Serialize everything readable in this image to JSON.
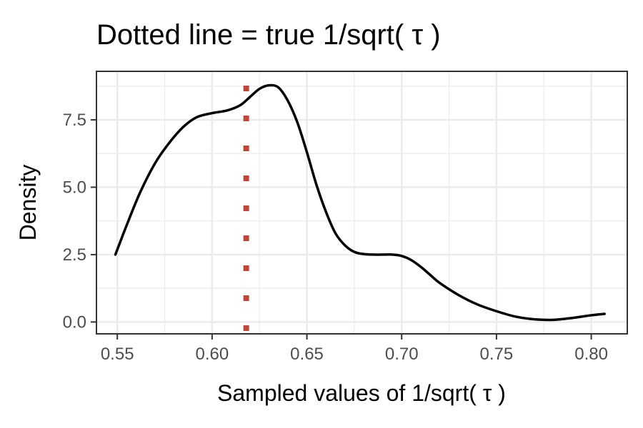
{
  "chart_data": {
    "type": "line",
    "title": "Dotted line = true 1/sqrt( τ )",
    "xlabel": "Sampled values of 1/sqrt( τ )",
    "ylabel": "Density",
    "xlim": [
      0.539,
      0.819
    ],
    "ylim": [
      -0.44,
      9.3
    ],
    "x_ticks": [
      0.55,
      0.6,
      0.65,
      0.7,
      0.75,
      0.8
    ],
    "x_tick_labels": [
      "0.55",
      "0.60",
      "0.65",
      "0.70",
      "0.75",
      "0.80"
    ],
    "y_ticks": [
      0.0,
      2.5,
      5.0,
      7.5
    ],
    "y_tick_labels": [
      "0.0",
      "2.5",
      "5.0",
      "7.5"
    ],
    "grid": true,
    "reference_line": {
      "x": 0.618,
      "style": "dotted",
      "color": "#c0463a"
    },
    "line_color": "#000000",
    "series": [
      {
        "x": [
          0.549,
          0.555,
          0.562,
          0.57,
          0.578,
          0.585,
          0.592,
          0.6,
          0.608,
          0.615,
          0.62,
          0.625,
          0.63,
          0.635,
          0.64,
          0.645,
          0.65,
          0.655,
          0.66,
          0.665,
          0.67,
          0.675,
          0.68,
          0.685,
          0.69,
          0.695,
          0.7,
          0.705,
          0.71,
          0.715,
          0.72,
          0.73,
          0.74,
          0.75,
          0.76,
          0.77,
          0.78,
          0.79,
          0.8,
          0.807
        ],
        "y": [
          2.5,
          3.6,
          4.8,
          5.9,
          6.7,
          7.25,
          7.6,
          7.75,
          7.85,
          8.05,
          8.35,
          8.65,
          8.78,
          8.7,
          8.2,
          7.4,
          6.3,
          5.1,
          4.1,
          3.3,
          2.85,
          2.6,
          2.52,
          2.5,
          2.5,
          2.5,
          2.45,
          2.3,
          2.05,
          1.75,
          1.45,
          1.0,
          0.65,
          0.4,
          0.2,
          0.1,
          0.08,
          0.15,
          0.25,
          0.3
        ]
      }
    ]
  }
}
